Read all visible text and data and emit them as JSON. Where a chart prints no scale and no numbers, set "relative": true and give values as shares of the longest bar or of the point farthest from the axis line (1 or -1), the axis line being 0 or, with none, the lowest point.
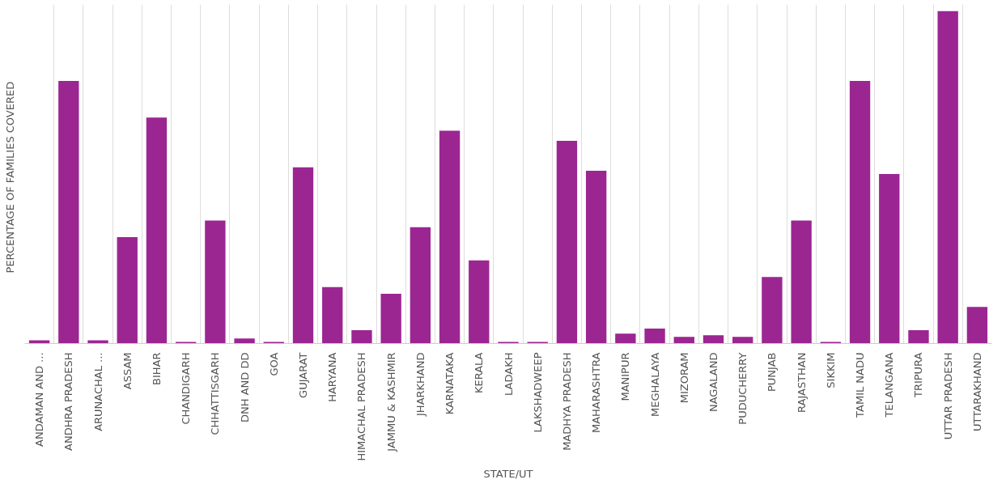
{
  "chart_data": {
    "type": "bar",
    "relative": true,
    "xlabel": "STATE/UT",
    "ylabel": "PERCENTAGE  OF FAMILIES  COVERED",
    "grid": "x",
    "color": "#9b2692",
    "categories": [
      "ANDAMAN AND ...",
      "ANDHRA PRADESH",
      "ARUNACHAL ...",
      "ASSAM",
      "BIHAR",
      "CHANDIGARH",
      "CHHATTISGARH",
      "DNH AND DD",
      "GOA",
      "GUJARAT",
      "HARYANA",
      "HIMACHAL PRADESH",
      "JAMMU & KASHMIR",
      "JHARKHAND",
      "KARNATAKA",
      "KERALA",
      "LADAKH",
      "LAKSHADWEEP",
      "MADHYA PRADESH",
      "MAHARASHTRA",
      "MANIPUR",
      "MEGHALAYA",
      "MIZORAM",
      "NAGALAND",
      "PUDUCHERRY",
      "PUNJAB",
      "RAJASTHAN",
      "SIKKIM",
      "TAMIL NADU",
      "TELANGANA",
      "TRIPURA",
      "UTTAR PRADESH",
      "UTTARAKHAND"
    ],
    "values": [
      0.01,
      0.79,
      0.01,
      0.32,
      0.68,
      0.005,
      0.37,
      0.015,
      0.005,
      0.53,
      0.17,
      0.04,
      0.15,
      0.35,
      0.64,
      0.25,
      0.005,
      0.005,
      0.61,
      0.52,
      0.03,
      0.045,
      0.02,
      0.025,
      0.02,
      0.2,
      0.37,
      0.005,
      0.79,
      0.51,
      0.04,
      1,
      0.11
    ]
  }
}
